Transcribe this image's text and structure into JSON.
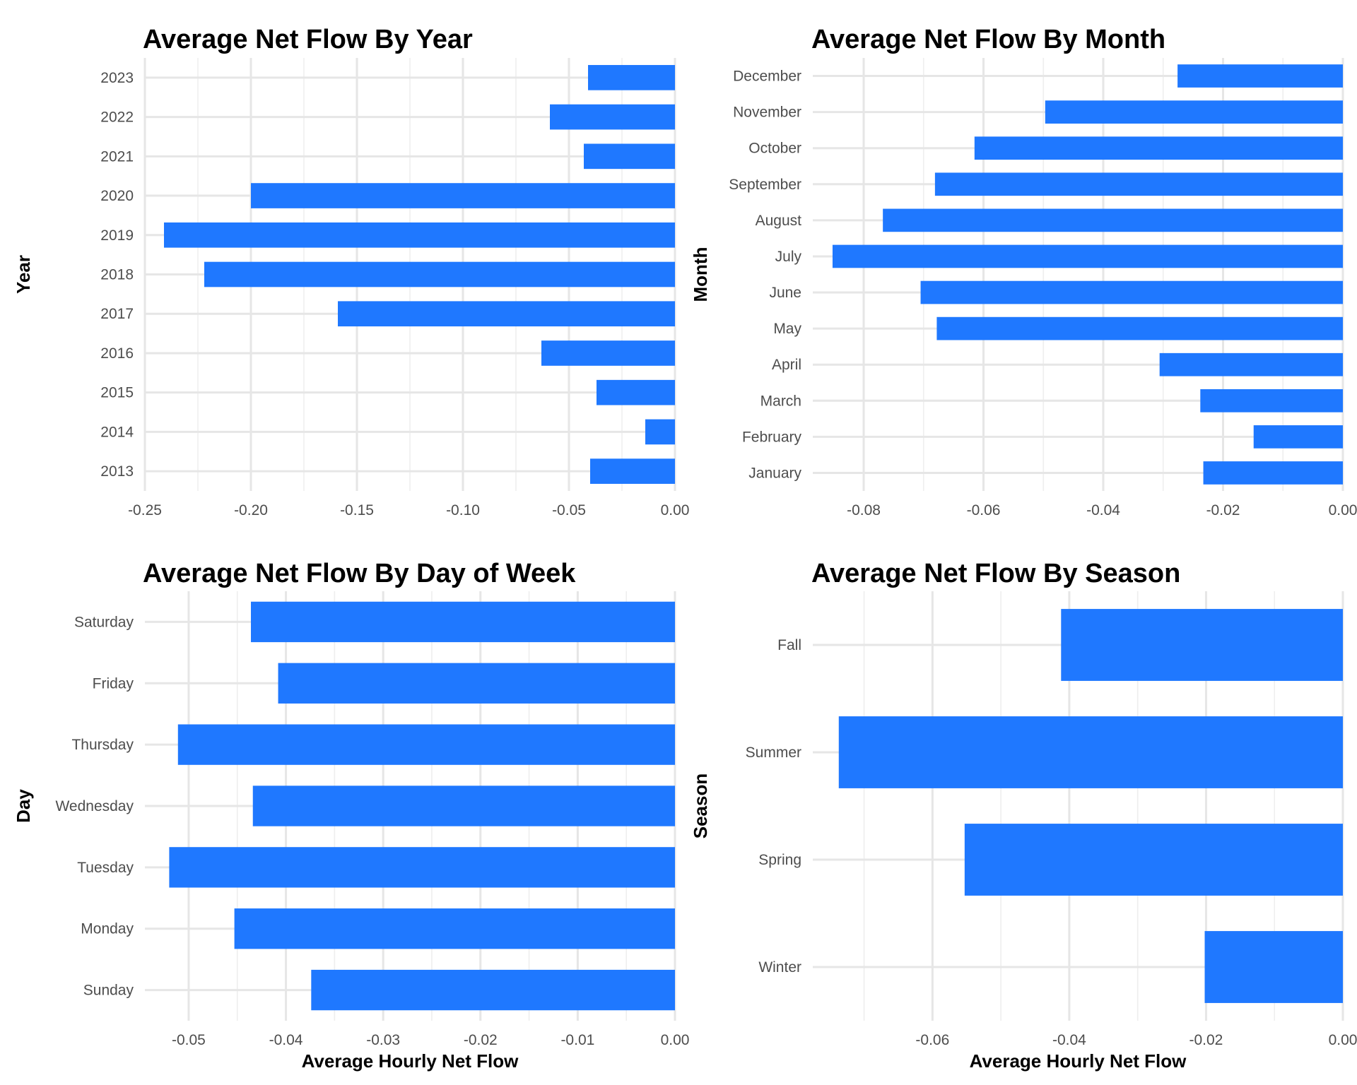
{
  "colors": {
    "bar": "#1F78FF",
    "grid_major": "#E6E6E6",
    "grid_minor": "#EEEEEE"
  },
  "chart_data": [
    {
      "type": "bar",
      "orientation": "horizontal",
      "title": "Average Net Flow By Year",
      "ylabel": "Year",
      "xlabel": "",
      "xlim": [
        -0.25,
        0.0
      ],
      "xticks": [
        -0.25,
        -0.2,
        -0.15,
        -0.1,
        -0.05,
        0.0
      ],
      "xtick_labels": [
        "-0.25",
        "-0.20",
        "-0.15",
        "-0.10",
        "-0.05",
        "0.00"
      ],
      "categories": [
        "2013",
        "2014",
        "2015",
        "2016",
        "2017",
        "2018",
        "2019",
        "2020",
        "2021",
        "2022",
        "2023"
      ],
      "values": [
        -0.04,
        -0.014,
        -0.037,
        -0.063,
        -0.159,
        -0.222,
        -0.241,
        -0.2,
        -0.043,
        -0.059,
        -0.041
      ],
      "grid": true
    },
    {
      "type": "bar",
      "orientation": "horizontal",
      "title": "Average Net Flow By Month",
      "ylabel": "Month",
      "xlabel": "",
      "xlim": [
        -0.0885,
        0.0
      ],
      "xticks": [
        -0.08,
        -0.06,
        -0.04,
        -0.02,
        0.0
      ],
      "xtick_labels": [
        "-0.08",
        "-0.06",
        "-0.04",
        "-0.02",
        "0.00"
      ],
      "categories": [
        "January",
        "February",
        "March",
        "April",
        "May",
        "June",
        "July",
        "August",
        "September",
        "October",
        "November",
        "December"
      ],
      "values": [
        -0.0233,
        -0.0149,
        -0.0238,
        -0.0306,
        -0.0678,
        -0.0705,
        -0.0852,
        -0.0768,
        -0.0681,
        -0.0615,
        -0.0497,
        -0.0276
      ],
      "grid": true
    },
    {
      "type": "bar",
      "orientation": "horizontal",
      "title": "Average Net Flow By Day of Week",
      "ylabel": "Day",
      "xlabel": "Average Hourly Net Flow",
      "xlim": [
        -0.0545,
        0.0
      ],
      "xticks": [
        -0.05,
        -0.04,
        -0.03,
        -0.02,
        -0.01,
        0.0
      ],
      "xtick_labels": [
        "-0.05",
        "-0.04",
        "-0.03",
        "-0.02",
        "-0.01",
        "0.00"
      ],
      "categories": [
        "Sunday",
        "Monday",
        "Tuesday",
        "Wednesday",
        "Thursday",
        "Friday",
        "Saturday"
      ],
      "values": [
        -0.0374,
        -0.0453,
        -0.052,
        -0.0434,
        -0.0511,
        -0.0408,
        -0.0436
      ],
      "grid": true
    },
    {
      "type": "bar",
      "orientation": "horizontal",
      "title": "Average Net Flow By Season",
      "ylabel": "Season",
      "xlabel": "Average Hourly Net Flow",
      "xlim": [
        -0.0775,
        0.0
      ],
      "xticks": [
        -0.06,
        -0.04,
        -0.02,
        0.0
      ],
      "xtick_labels": [
        "-0.06",
        "-0.04",
        "-0.02",
        "0.00"
      ],
      "categories": [
        "Winter",
        "Spring",
        "Summer",
        "Fall"
      ],
      "values": [
        -0.0202,
        -0.0553,
        -0.0737,
        -0.0412
      ],
      "grid": true
    }
  ]
}
